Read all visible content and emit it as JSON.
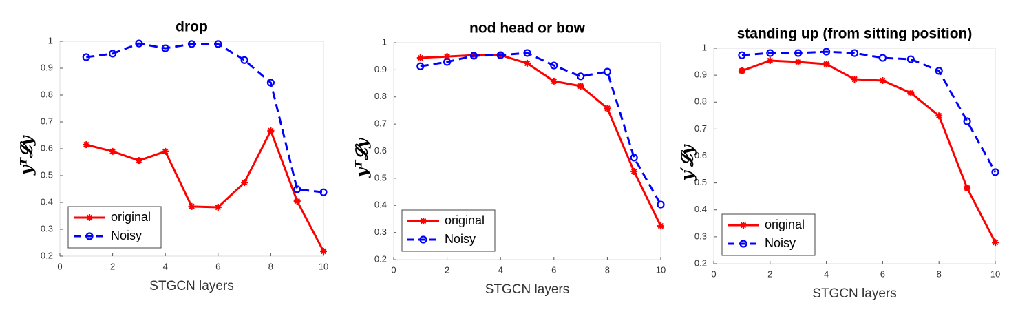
{
  "chart_data": [
    {
      "type": "line",
      "title": "drop",
      "xlabel": "STGCN layers",
      "ylabel": "yᵀ𝓛y",
      "x": [
        1,
        2,
        3,
        4,
        5,
        6,
        7,
        8,
        9,
        10
      ],
      "xlim": [
        0,
        10
      ],
      "xticks": [
        0,
        2,
        4,
        6,
        8,
        10
      ],
      "ylim": [
        0.2,
        1
      ],
      "yticks": [
        0.2,
        0.3,
        0.4,
        0.5,
        0.6,
        0.7,
        0.8,
        0.9,
        1
      ],
      "legend": "lower left",
      "series": [
        {
          "name": "original",
          "color": "#ff0000",
          "marker": "asterisk",
          "linestyle": "solid",
          "values": [
            0.615,
            0.59,
            0.556,
            0.59,
            0.385,
            0.382,
            0.474,
            0.667,
            0.405,
            0.218
          ]
        },
        {
          "name": "Noisy",
          "color": "#0000ff",
          "marker": "circle",
          "linestyle": "dashed",
          "values": [
            0.941,
            0.954,
            0.992,
            0.974,
            0.99,
            0.99,
            0.93,
            0.846,
            0.449,
            0.438
          ]
        }
      ]
    },
    {
      "type": "line",
      "title": "nod head or bow",
      "xlabel": "STGCN layers",
      "ylabel": "yᵀ𝓛y",
      "x": [
        1,
        2,
        3,
        4,
        5,
        6,
        7,
        8,
        9,
        10
      ],
      "xlim": [
        0,
        10
      ],
      "xticks": [
        0,
        2,
        4,
        6,
        8,
        10
      ],
      "ylim": [
        0.2,
        1
      ],
      "yticks": [
        0.2,
        0.3,
        0.4,
        0.5,
        0.6,
        0.7,
        0.8,
        0.9,
        1
      ],
      "legend": "lower left",
      "series": [
        {
          "name": "original",
          "color": "#ff0000",
          "marker": "asterisk",
          "linestyle": "solid",
          "values": [
            0.944,
            0.949,
            0.954,
            0.954,
            0.924,
            0.858,
            0.84,
            0.758,
            0.525,
            0.324
          ]
        },
        {
          "name": "Noisy",
          "color": "#0000ff",
          "marker": "circle",
          "linestyle": "dashed",
          "values": [
            0.913,
            0.929,
            0.952,
            0.954,
            0.962,
            0.916,
            0.876,
            0.893,
            0.576,
            0.403
          ]
        }
      ]
    },
    {
      "type": "line",
      "title": "standing up (from sitting position)",
      "xlabel": "STGCN layers",
      "ylabel": "y′𝓛y",
      "x": [
        1,
        2,
        3,
        4,
        5,
        6,
        7,
        8,
        9,
        10
      ],
      "xlim": [
        0,
        10
      ],
      "xticks": [
        0,
        2,
        4,
        6,
        8,
        10
      ],
      "ylim": [
        0.2,
        1
      ],
      "yticks": [
        0.2,
        0.3,
        0.4,
        0.5,
        0.6,
        0.7,
        0.8,
        0.9,
        1
      ],
      "legend": "lower left",
      "series": [
        {
          "name": "original",
          "color": "#ff0000",
          "marker": "asterisk",
          "linestyle": "solid",
          "values": [
            0.916,
            0.954,
            0.949,
            0.941,
            0.885,
            0.88,
            0.834,
            0.749,
            0.481,
            0.279
          ]
        },
        {
          "name": "Noisy",
          "color": "#0000ff",
          "marker": "circle",
          "linestyle": "dashed",
          "values": [
            0.974,
            0.982,
            0.982,
            0.987,
            0.982,
            0.964,
            0.959,
            0.916,
            0.729,
            0.54
          ]
        }
      ]
    }
  ]
}
